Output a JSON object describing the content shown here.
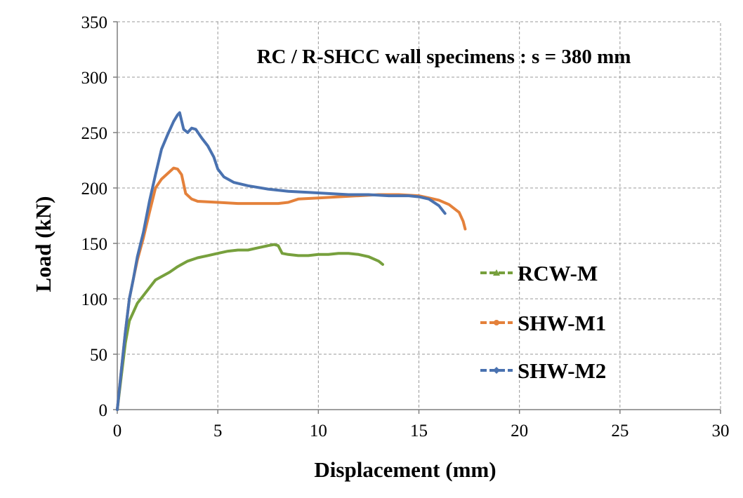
{
  "chart_data": {
    "type": "line",
    "title": "RC / R-SHCC wall specimens : s = 380 mm",
    "xlabel": "Displacement (mm)",
    "ylabel": "Load  (kN)",
    "xlim": [
      0,
      30
    ],
    "ylim": [
      0,
      350
    ],
    "x_ticks": [
      0,
      5,
      10,
      15,
      20,
      25,
      30
    ],
    "y_ticks": [
      0,
      50,
      100,
      150,
      200,
      250,
      300,
      350
    ],
    "grid": true,
    "legend_position": "right",
    "series": [
      {
        "name": "RCW-M",
        "color": "#77A03D",
        "marker": "triangle",
        "points": [
          [
            0,
            0
          ],
          [
            0.2,
            30
          ],
          [
            0.4,
            60
          ],
          [
            0.6,
            80
          ],
          [
            0.8,
            88
          ],
          [
            1.0,
            96
          ],
          [
            1.3,
            103
          ],
          [
            1.6,
            110
          ],
          [
            1.9,
            117
          ],
          [
            2.2,
            120
          ],
          [
            2.6,
            124
          ],
          [
            3.0,
            129
          ],
          [
            3.5,
            134
          ],
          [
            4.0,
            137
          ],
          [
            4.5,
            139
          ],
          [
            5.0,
            141
          ],
          [
            5.5,
            143
          ],
          [
            6.0,
            144
          ],
          [
            6.5,
            144
          ],
          [
            7.0,
            146
          ],
          [
            7.5,
            148
          ],
          [
            7.8,
            149
          ],
          [
            8.0,
            148
          ],
          [
            8.2,
            141
          ],
          [
            8.5,
            140
          ],
          [
            9.0,
            139
          ],
          [
            9.5,
            139
          ],
          [
            10.0,
            140
          ],
          [
            10.5,
            140
          ],
          [
            11.0,
            141
          ],
          [
            11.5,
            141
          ],
          [
            12.0,
            140
          ],
          [
            12.5,
            138
          ],
          [
            13.0,
            134
          ],
          [
            13.2,
            131
          ]
        ]
      },
      {
        "name": "SHW-M1",
        "color": "#E4813B",
        "marker": "circle",
        "points": [
          [
            0,
            0
          ],
          [
            0.2,
            35
          ],
          [
            0.4,
            70
          ],
          [
            0.6,
            100
          ],
          [
            0.8,
            118
          ],
          [
            1.0,
            135
          ],
          [
            1.3,
            155
          ],
          [
            1.6,
            178
          ],
          [
            1.9,
            200
          ],
          [
            2.2,
            208
          ],
          [
            2.5,
            213
          ],
          [
            2.8,
            218
          ],
          [
            3.0,
            217
          ],
          [
            3.2,
            212
          ],
          [
            3.4,
            195
          ],
          [
            3.7,
            190
          ],
          [
            4.0,
            188
          ],
          [
            5.0,
            187
          ],
          [
            6.0,
            186
          ],
          [
            7.0,
            186
          ],
          [
            8.0,
            186
          ],
          [
            8.5,
            187
          ],
          [
            9.0,
            190
          ],
          [
            10.0,
            191
          ],
          [
            11.0,
            192
          ],
          [
            12.0,
            193
          ],
          [
            13.0,
            194
          ],
          [
            14.0,
            194
          ],
          [
            15.0,
            193
          ],
          [
            15.5,
            191
          ],
          [
            16.0,
            189
          ],
          [
            16.5,
            185
          ],
          [
            17.0,
            178
          ],
          [
            17.2,
            170
          ],
          [
            17.3,
            163
          ]
        ]
      },
      {
        "name": "SHW-M2",
        "color": "#4A72B0",
        "marker": "diamond",
        "points": [
          [
            0,
            0
          ],
          [
            0.2,
            35
          ],
          [
            0.4,
            70
          ],
          [
            0.6,
            100
          ],
          [
            0.8,
            118
          ],
          [
            1.0,
            138
          ],
          [
            1.3,
            160
          ],
          [
            1.6,
            188
          ],
          [
            1.9,
            212
          ],
          [
            2.2,
            235
          ],
          [
            2.5,
            248
          ],
          [
            2.8,
            260
          ],
          [
            3.0,
            266
          ],
          [
            3.1,
            268
          ],
          [
            3.3,
            253
          ],
          [
            3.5,
            250
          ],
          [
            3.7,
            254
          ],
          [
            3.9,
            253
          ],
          [
            4.2,
            245
          ],
          [
            4.5,
            238
          ],
          [
            4.8,
            228
          ],
          [
            5.0,
            217
          ],
          [
            5.3,
            210
          ],
          [
            5.8,
            205
          ],
          [
            6.5,
            202
          ],
          [
            7.5,
            199
          ],
          [
            8.5,
            197
          ],
          [
            9.5,
            196
          ],
          [
            10.5,
            195
          ],
          [
            11.5,
            194
          ],
          [
            12.5,
            194
          ],
          [
            13.5,
            193
          ],
          [
            14.5,
            193
          ],
          [
            15.0,
            192
          ],
          [
            15.5,
            190
          ],
          [
            16.0,
            184
          ],
          [
            16.3,
            177
          ]
        ]
      }
    ]
  }
}
